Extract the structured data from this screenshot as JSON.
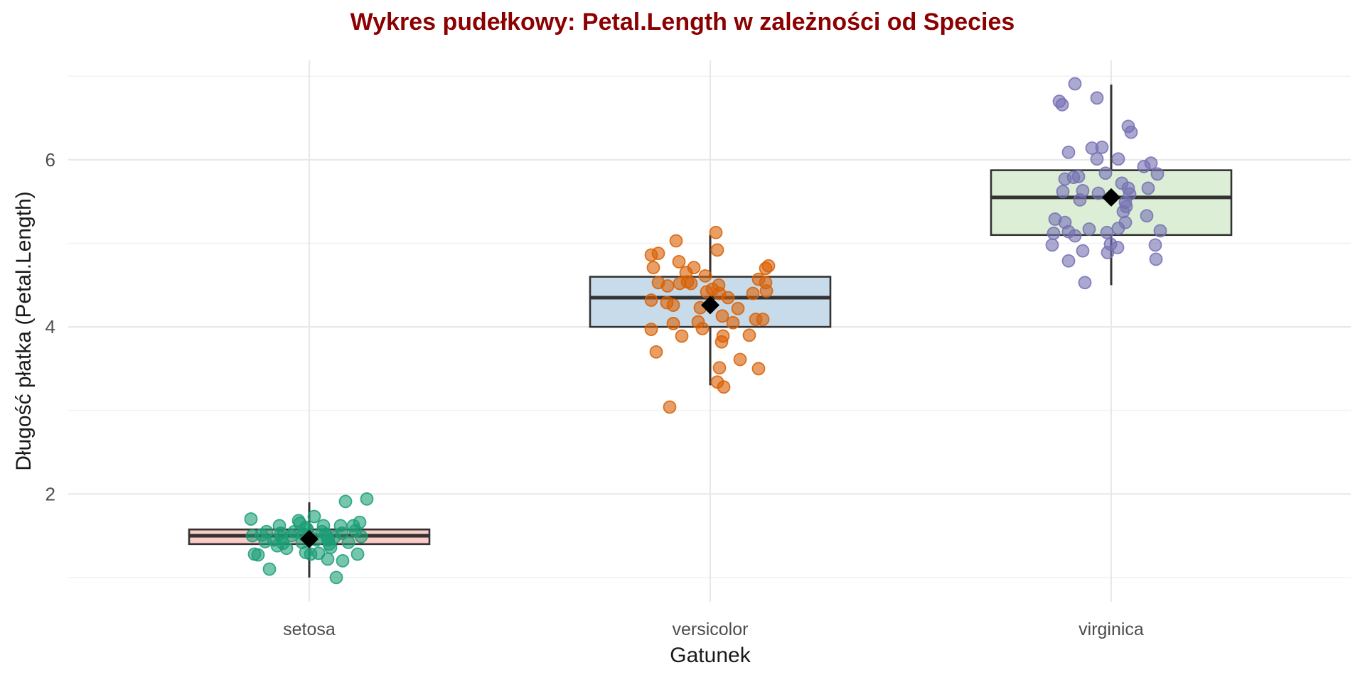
{
  "figure": {
    "title_color": "#8B0000",
    "background": "#FFFFFF"
  },
  "chart_data": {
    "type": "boxplot",
    "title": "Wykres pudełkowy: Petal.Length w zależności od Species",
    "xlabel": "Gatunek",
    "ylabel": "Długość płatka (Petal.Length)",
    "categories": [
      "setosa",
      "versicolor",
      "virginica"
    ],
    "y_major_ticks": [
      2,
      4,
      6
    ],
    "y_minor_ticks": [
      1,
      3,
      5,
      7
    ],
    "ylim": [
      0.71,
      7.19
    ],
    "grid": "horizontal-and-vertical-major",
    "legend": "none",
    "styles": {
      "box_stroke": "#333333",
      "mean_marker": "diamond",
      "mean_color": "#000000",
      "grid_major": "#E8E8E8",
      "grid_minor": "#F2F2F2",
      "tick_label_color": "#4D4D4D",
      "axis_title_color": "#1A1A1A"
    },
    "groups": [
      {
        "name": "setosa",
        "box_fill": "#FACBC7",
        "point_color": "#1B9E77",
        "whisker_low": 1.0,
        "q1": 1.4,
        "median": 1.5,
        "q3": 1.575,
        "whisker_high": 1.9,
        "mean": 1.46,
        "points": [
          [
            -82,
            1.7
          ],
          [
            -80,
            1.5
          ],
          [
            -77,
            1.28
          ],
          [
            -72,
            1.27
          ],
          [
            -67,
            1.51
          ],
          [
            -62,
            1.43
          ],
          [
            -56,
            1.1
          ],
          [
            -60,
            1.55
          ],
          [
            -50,
            1.45
          ],
          [
            -45,
            1.38
          ],
          [
            -42,
            1.62
          ],
          [
            -40,
            1.53
          ],
          [
            -39,
            1.48
          ],
          [
            -37,
            1.41
          ],
          [
            -32,
            1.35
          ],
          [
            -25,
            1.5
          ],
          [
            -21,
            1.55
          ],
          [
            -15,
            1.68
          ],
          [
            -13,
            1.65
          ],
          [
            -10,
            1.42
          ],
          [
            -8,
            1.52
          ],
          [
            -5,
            1.6
          ],
          [
            -3,
            1.58
          ],
          [
            -5,
            1.3
          ],
          [
            0,
            1.5
          ],
          [
            2,
            1.28
          ],
          [
            7,
            1.73
          ],
          [
            10,
            1.45
          ],
          [
            13,
            1.29
          ],
          [
            18,
            1.55
          ],
          [
            20,
            1.62
          ],
          [
            23,
            1.52
          ],
          [
            25,
            1.49
          ],
          [
            27,
            1.45
          ],
          [
            28,
            1.4
          ],
          [
            30,
            1.36
          ],
          [
            26,
            1.22
          ],
          [
            35,
            1.48
          ],
          [
            38,
            1.0
          ],
          [
            44,
            1.62
          ],
          [
            46,
            1.53
          ],
          [
            47,
            1.2
          ],
          [
            51,
            1.91
          ],
          [
            55,
            1.42
          ],
          [
            62,
            1.62
          ],
          [
            65,
            1.56
          ],
          [
            68,
            1.28
          ],
          [
            71,
            1.66
          ],
          [
            73,
            1.49
          ],
          [
            81,
            1.94
          ]
        ]
      },
      {
        "name": "versicolor",
        "box_fill": "#C8DBEB",
        "point_color": "#D95F02",
        "whisker_low": 3.3,
        "q1": 4.0,
        "median": 4.35,
        "q3": 4.6,
        "whisker_high": 5.1,
        "mean": 4.26,
        "points": [
          [
            8,
            5.13
          ],
          [
            -48,
            5.03
          ],
          [
            -83,
            4.86
          ],
          [
            -73,
            4.88
          ],
          [
            10,
            4.92
          ],
          [
            -80,
            4.71
          ],
          [
            -44,
            4.78
          ],
          [
            -23,
            4.71
          ],
          [
            82,
            4.73
          ],
          [
            78,
            4.7
          ],
          [
            -34,
            4.65
          ],
          [
            -7,
            4.61
          ],
          [
            -73,
            4.53
          ],
          [
            -60,
            4.49
          ],
          [
            -43,
            4.52
          ],
          [
            -32,
            4.54
          ],
          [
            -27,
            4.52
          ],
          [
            3,
            4.45
          ],
          [
            12,
            4.5
          ],
          [
            68,
            4.57
          ],
          [
            78,
            4.53
          ],
          [
            60,
            4.4
          ],
          [
            79,
            4.43
          ],
          [
            13,
            4.4
          ],
          [
            25,
            4.35
          ],
          [
            -5,
            4.42
          ],
          [
            -83,
            4.32
          ],
          [
            -61,
            4.29
          ],
          [
            -52,
            4.26
          ],
          [
            -14,
            4.23
          ],
          [
            39,
            4.22
          ],
          [
            17,
            4.13
          ],
          [
            64,
            4.09
          ],
          [
            74,
            4.09
          ],
          [
            32,
            4.05
          ],
          [
            -52,
            4.04
          ],
          [
            -17,
            4.06
          ],
          [
            -11,
            3.98
          ],
          [
            -83,
            3.97
          ],
          [
            -40,
            3.89
          ],
          [
            18,
            3.89
          ],
          [
            16,
            3.82
          ],
          [
            55,
            3.9
          ],
          [
            -76,
            3.7
          ],
          [
            42,
            3.61
          ],
          [
            13,
            3.51
          ],
          [
            68,
            3.5
          ],
          [
            10,
            3.34
          ],
          [
            19,
            3.28
          ],
          [
            -57,
            3.04
          ]
        ]
      },
      {
        "name": "virginica",
        "box_fill": "#DCEFD6",
        "point_color": "#7570B3",
        "whisker_low": 4.5,
        "q1": 5.1,
        "median": 5.55,
        "q3": 5.875,
        "whisker_high": 6.9,
        "mean": 5.55,
        "points": [
          [
            -51,
            6.91
          ],
          [
            -20,
            6.74
          ],
          [
            -73,
            6.7
          ],
          [
            -69,
            6.66
          ],
          [
            24,
            6.4
          ],
          [
            28,
            6.33
          ],
          [
            -27,
            6.14
          ],
          [
            -13,
            6.15
          ],
          [
            -60,
            6.09
          ],
          [
            -20,
            6.01
          ],
          [
            10,
            6.01
          ],
          [
            46,
            5.92
          ],
          [
            56,
            5.96
          ],
          [
            -8,
            5.84
          ],
          [
            65,
            5.83
          ],
          [
            -65,
            5.77
          ],
          [
            -53,
            5.79
          ],
          [
            -46,
            5.8
          ],
          [
            15,
            5.72
          ],
          [
            24,
            5.66
          ],
          [
            -68,
            5.62
          ],
          [
            -40,
            5.63
          ],
          [
            -18,
            5.6
          ],
          [
            26,
            5.59
          ],
          [
            52,
            5.66
          ],
          [
            -44,
            5.52
          ],
          [
            0,
            5.55
          ],
          [
            20,
            5.49
          ],
          [
            21,
            5.44
          ],
          [
            17,
            5.38
          ],
          [
            50,
            5.33
          ],
          [
            -79,
            5.29
          ],
          [
            -65,
            5.25
          ],
          [
            20,
            5.25
          ],
          [
            -31,
            5.17
          ],
          [
            10,
            5.18
          ],
          [
            69,
            5.15
          ],
          [
            -81,
            5.12
          ],
          [
            -60,
            5.14
          ],
          [
            -51,
            5.09
          ],
          [
            -6,
            5.13
          ],
          [
            -1,
            4.99
          ],
          [
            9,
            4.95
          ],
          [
            -83,
            4.98
          ],
          [
            62,
            4.98
          ],
          [
            -40,
            4.91
          ],
          [
            -5,
            4.89
          ],
          [
            -60,
            4.79
          ],
          [
            63,
            4.81
          ],
          [
            -37,
            4.53
          ]
        ]
      }
    ]
  }
}
